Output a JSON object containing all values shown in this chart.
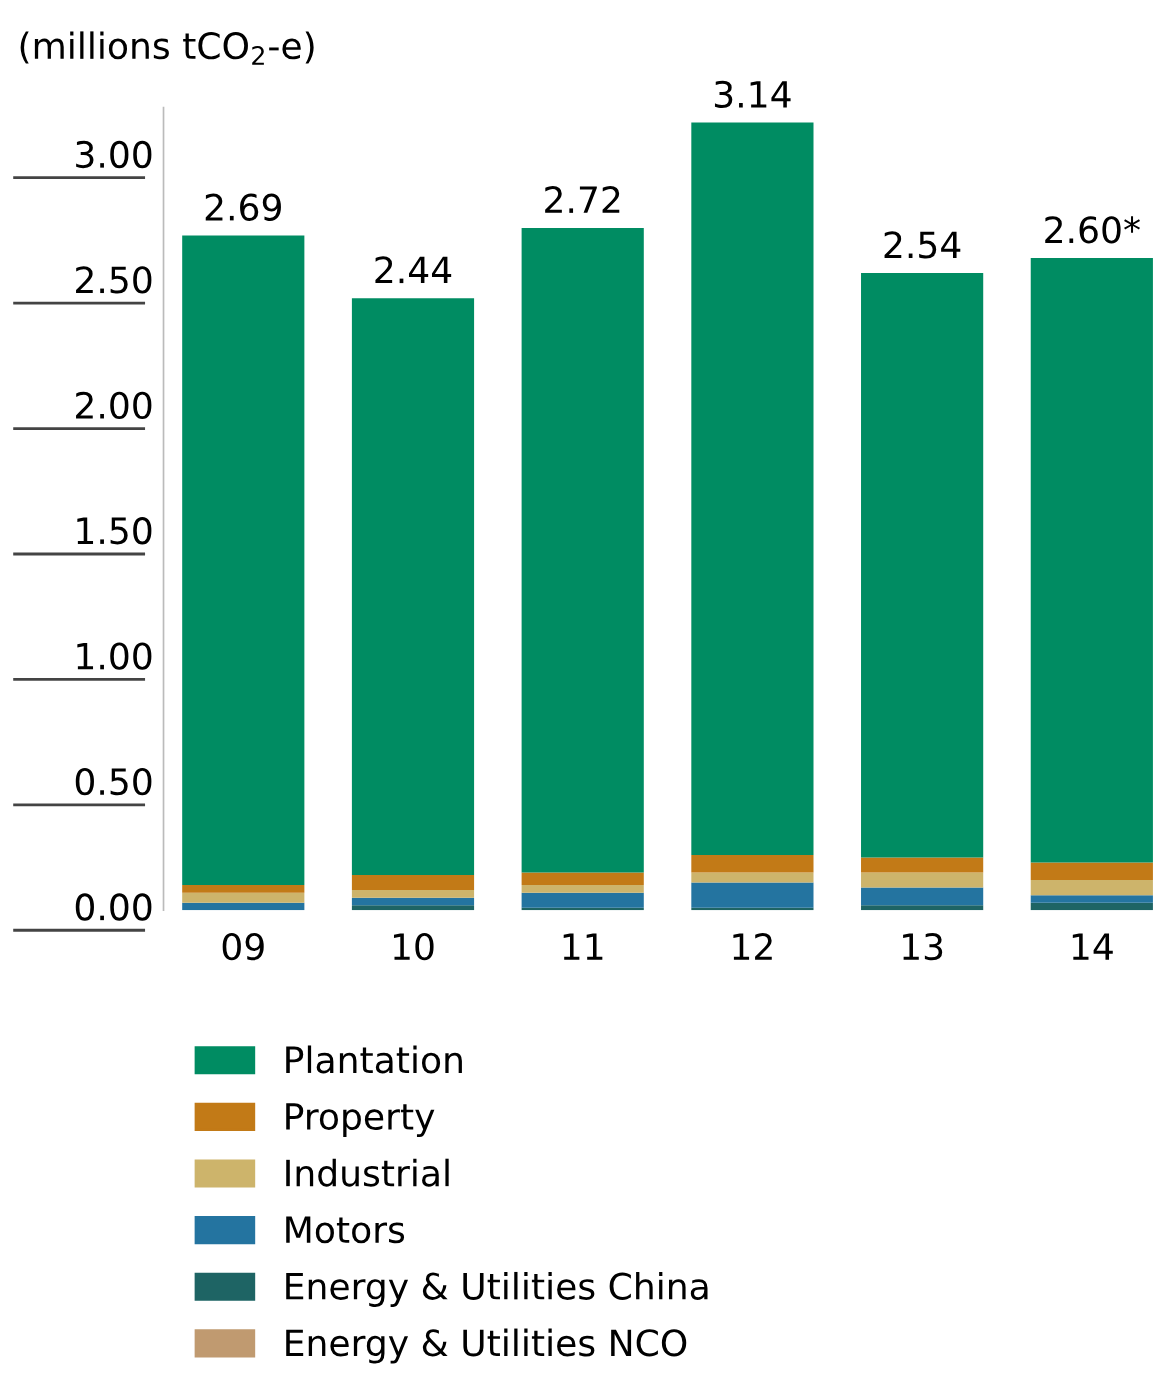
{
  "chart_data": {
    "type": "bar",
    "stacked": true,
    "ylabel": "(millions tCO$_{2}$-e)",
    "categories": [
      "09",
      "10",
      "11",
      "12",
      "13",
      "14"
    ],
    "series": [
      {
        "name": "Energy & Utilities NCO",
        "color": "#c09a70",
        "values": [
          0,
          0,
          0,
          0,
          0,
          0
        ]
      },
      {
        "name": "Energy & Utilities China",
        "color": "#1e6464",
        "values": [
          0,
          0.02,
          0.01,
          0.01,
          0.02,
          0.03
        ]
      },
      {
        "name": "Motors",
        "color": "#2474a0",
        "values": [
          0.03,
          0.03,
          0.06,
          0.1,
          0.07,
          0.03
        ]
      },
      {
        "name": "Industrial",
        "color": "#cdb46b",
        "values": [
          0.04,
          0.03,
          0.03,
          0.04,
          0.06,
          0.06
        ]
      },
      {
        "name": "Property",
        "color": "#c27a17",
        "values": [
          0.03,
          0.06,
          0.05,
          0.07,
          0.06,
          0.07
        ]
      },
      {
        "name": "Plantation",
        "color": "#008c62",
        "values": [
          2.59,
          2.3,
          2.57,
          2.92,
          2.33,
          2.41
        ]
      }
    ],
    "totals": [
      "2.69",
      "2.44",
      "2.72",
      "3.14",
      "2.54",
      "2.60*"
    ],
    "ylim": [
      0,
      3.2
    ],
    "yticks": [
      {
        "value": 0,
        "label": "0.00"
      },
      {
        "value": 0.5,
        "label": "0.50"
      },
      {
        "value": 1,
        "label": "1.00"
      },
      {
        "value": 1.5,
        "label": "1.50"
      },
      {
        "value": 2,
        "label": "2.00"
      },
      {
        "value": 2.5,
        "label": "2.50"
      },
      {
        "value": 3,
        "label": "3.00"
      }
    ],
    "grid": false,
    "legend": "bottom"
  }
}
